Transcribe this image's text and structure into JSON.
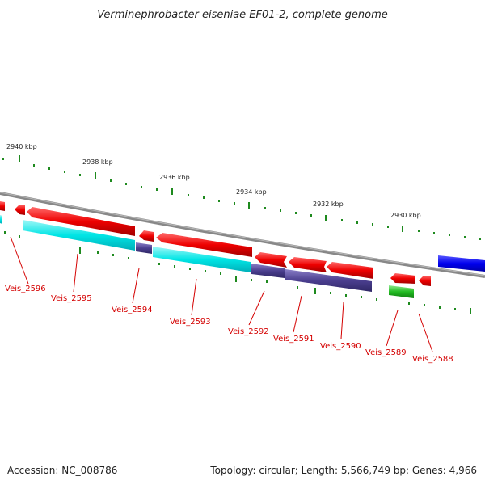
{
  "title": "Verminephrobacter eiseniae EF01-2, complete genome",
  "scale_labels": [
    "2940 kbp",
    "2938 kbp",
    "2936 kbp",
    "2934 kbp",
    "2932 kbp",
    "2930 kbp"
  ],
  "genes": [
    "Veis_2596",
    "Veis_2595",
    "Veis_2594",
    "Veis_2593",
    "Veis_2592",
    "Veis_2591",
    "Veis_2590",
    "Veis_2589",
    "Veis_2588"
  ],
  "footer": {
    "accession": "Accession: NC_008786",
    "summary": "Topology: circular; Length: 5,566,749 bp; Genes: 4,966"
  },
  "colors": {
    "forward_gene": "#ee0000",
    "reverse_gene_cyan": "#00e5e5",
    "reverse_gene_slate": "#4b3f8f",
    "rna_gene": "#22bb22",
    "other_gene": "#0000ee",
    "backbone": "#888888",
    "ticks": "#1e8a1e",
    "labels": "#d40000"
  }
}
